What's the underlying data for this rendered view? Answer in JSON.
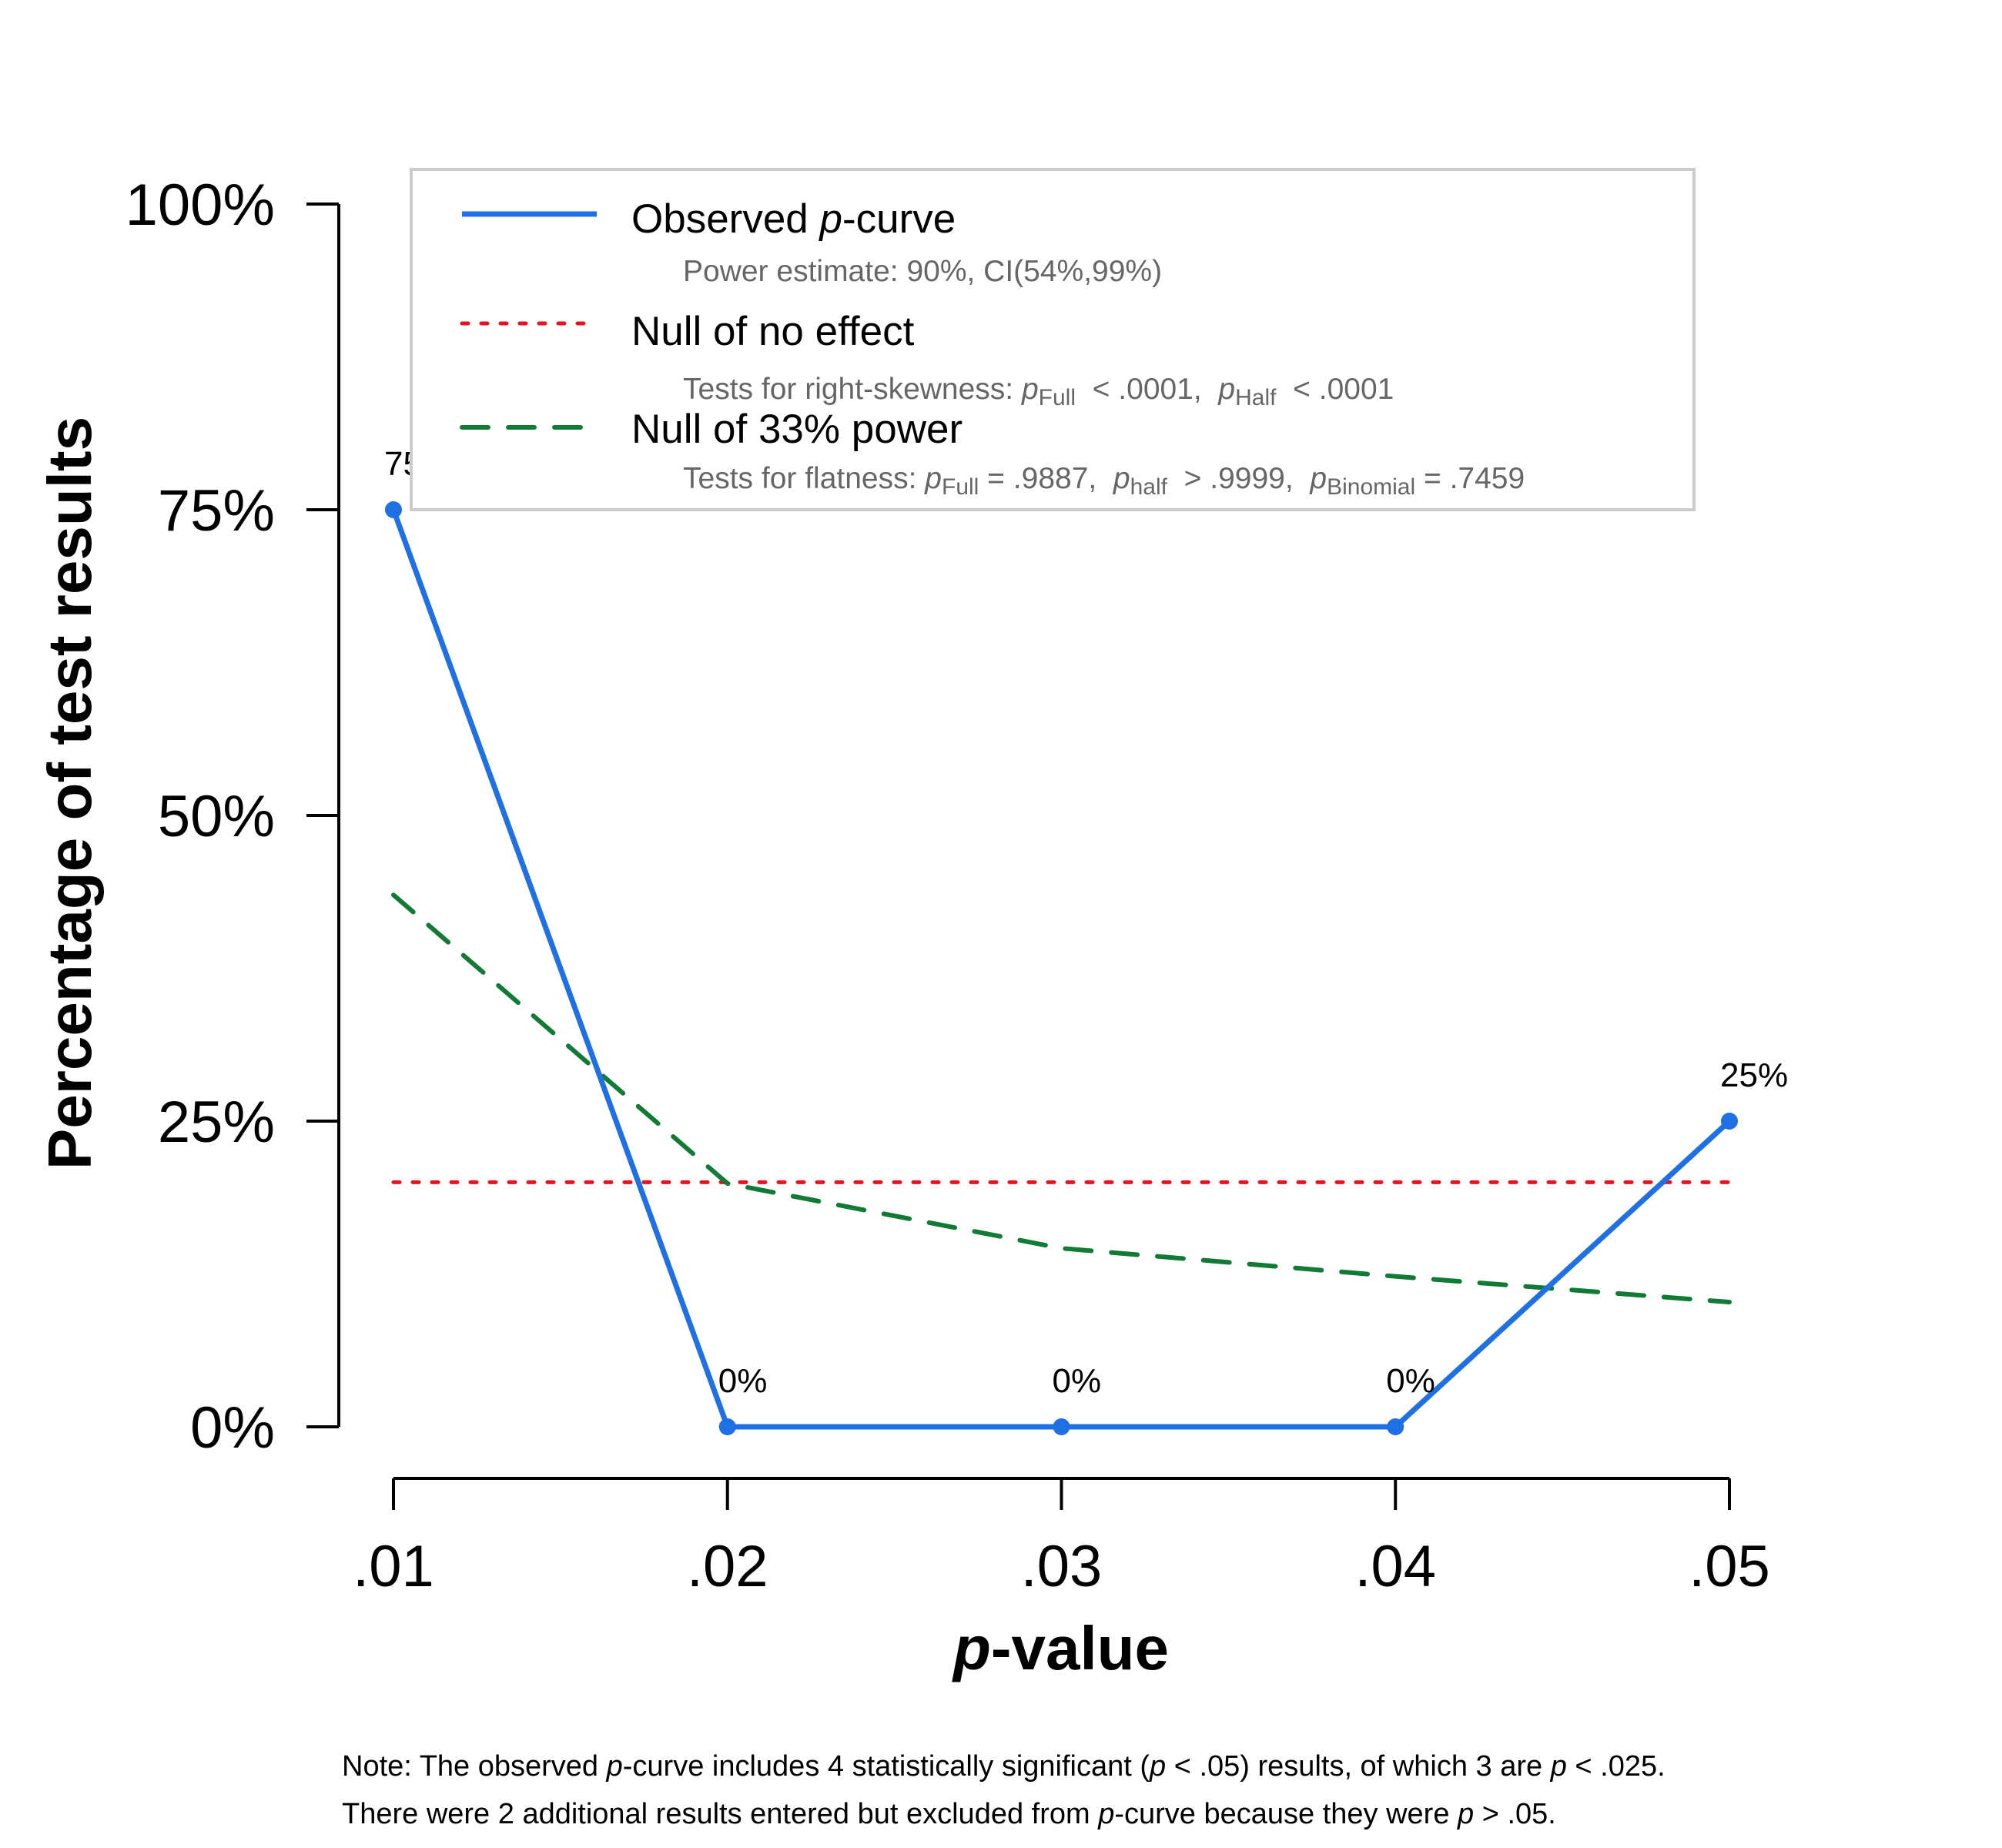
{
  "chart_data": {
    "type": "line",
    "xlabel_italic": "p",
    "xlabel_rest": "-value",
    "ylabel": "Percentage of test results",
    "x": [
      0.01,
      0.02,
      0.03,
      0.04,
      0.05
    ],
    "x_tick_labels": [
      ".01",
      ".02",
      ".03",
      ".04",
      ".05"
    ],
    "y_ticks": [
      0,
      25,
      50,
      75,
      100
    ],
    "y_tick_labels": [
      "0%",
      "25%",
      "50%",
      "75%",
      "100%"
    ],
    "ylim": [
      0,
      100
    ],
    "grid": false,
    "legend_position": "top",
    "series": [
      {
        "name": "Observed p-curve",
        "style": "solid",
        "color": "#1f6fe5",
        "values": [
          75,
          0,
          0,
          0,
          25
        ],
        "data_labels": [
          "75%",
          "0%",
          "0%",
          "0%",
          "25%"
        ]
      },
      {
        "name": "Null of no effect",
        "style": "dotted",
        "color": "#e8131f",
        "values": [
          20,
          20,
          20,
          20,
          20
        ]
      },
      {
        "name": "Null of 33% power",
        "style": "dashed",
        "color": "#117a34",
        "values": [
          43.5,
          19.9,
          14.6,
          12.3,
          10.2
        ]
      }
    ],
    "legend": [
      {
        "title_parts": [
          {
            "t": "Observed "
          },
          {
            "t": "p",
            "i": true
          },
          {
            "t": "-curve"
          }
        ],
        "sub_parts": [
          {
            "t": "Power estimate: 90%, CI(54%,99%)"
          }
        ]
      },
      {
        "title_parts": [
          {
            "t": "Null of no effect"
          }
        ],
        "sub_parts": [
          {
            "t": "Tests for right-skewness: "
          },
          {
            "t": "p",
            "i": true
          },
          {
            "t": "Full",
            "sub": true
          },
          {
            "t": "  < .0001,  "
          },
          {
            "t": "p",
            "i": true
          },
          {
            "t": "Half",
            "sub": true
          },
          {
            "t": "  < .0001"
          }
        ]
      },
      {
        "title_parts": [
          {
            "t": "Null of 33% power"
          }
        ],
        "sub_parts": [
          {
            "t": "Tests for flatness: "
          },
          {
            "t": "p",
            "i": true
          },
          {
            "t": "Full",
            "sub": true
          },
          {
            "t": " = .9887,  "
          },
          {
            "t": "p",
            "i": true
          },
          {
            "t": "half",
            "sub": true
          },
          {
            "t": "  > .9999,  "
          },
          {
            "t": "p",
            "i": true
          },
          {
            "t": "Binomial",
            "sub": true
          },
          {
            "t": " = .7459"
          }
        ]
      }
    ],
    "note_lines": [
      [
        {
          "t": "Note: The observed "
        },
        {
          "t": "p",
          "i": true
        },
        {
          "t": "-curve includes 4 statistically significant ("
        },
        {
          "t": "p",
          "i": true
        },
        {
          "t": " < .05) results, of which 3 are "
        },
        {
          "t": "p",
          "i": true
        },
        {
          "t": " < .025."
        }
      ],
      [
        {
          "t": "There were 2 additional results entered but excluded from "
        },
        {
          "t": "p",
          "i": true
        },
        {
          "t": "-curve because they were "
        },
        {
          "t": "p",
          "i": true
        },
        {
          "t": " > .05."
        }
      ]
    ],
    "legend_border_color": "#cccccc"
  }
}
